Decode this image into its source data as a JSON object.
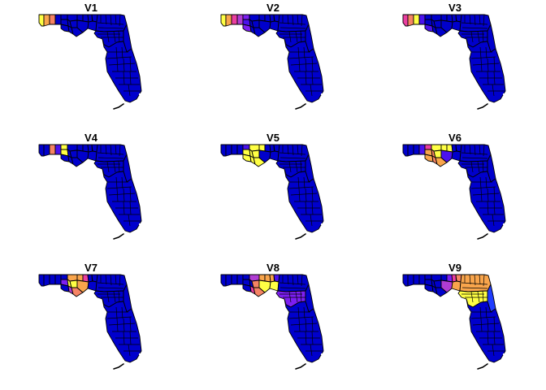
{
  "figure": {
    "panels": [
      {
        "title": "V1",
        "counties": [
          {
            "id": "escambia",
            "color": "#ffff44"
          },
          {
            "id": "santa-rosa",
            "color": "#f9a54c"
          },
          {
            "id": "okaloosa",
            "color": "#f58464"
          },
          {
            "id": "walton",
            "color": "#0000cc"
          },
          {
            "id": "holmes",
            "color": "#0000cc"
          },
          {
            "id": "washington",
            "color": "#0000cc"
          },
          {
            "id": "bay",
            "color": "#0000cc"
          },
          {
            "id": "jackson",
            "color": "#0000cc"
          },
          {
            "id": "calhoun",
            "color": "#0000cc"
          },
          {
            "id": "gulf",
            "color": "#0000cc"
          },
          {
            "id": "gadsden",
            "color": "#0000cc"
          },
          {
            "id": "liberty",
            "color": "#0000cc"
          },
          {
            "id": "franklin",
            "color": "#0000cc"
          },
          {
            "id": "leon",
            "color": "#0000cc"
          },
          {
            "id": "wakulla",
            "color": "#0000cc"
          },
          {
            "id": "jefferson",
            "color": "#0000cc"
          },
          {
            "id": "madison",
            "color": "#0000cc"
          },
          {
            "id": "taylor",
            "color": "#0000cc"
          },
          {
            "id": "nefl",
            "color": "#0000cc"
          },
          {
            "id": "central",
            "color": "#0000cc"
          },
          {
            "id": "east",
            "color": "#0000cc"
          },
          {
            "id": "south",
            "color": "#0000cc"
          }
        ]
      },
      {
        "title": "V2",
        "counties": [
          {
            "id": "escambia",
            "color": "#ffff44"
          },
          {
            "id": "santa-rosa",
            "color": "#f9a54c"
          },
          {
            "id": "okaloosa",
            "color": "#ea3fa0"
          },
          {
            "id": "walton",
            "color": "#b03cd3"
          },
          {
            "id": "holmes",
            "color": "#7d1ff2"
          },
          {
            "id": "washington",
            "color": "#4b12ee"
          },
          {
            "id": "bay",
            "color": "#7d1ff2"
          },
          {
            "id": "jackson",
            "color": "#0000cc"
          },
          {
            "id": "calhoun",
            "color": "#0000cc"
          },
          {
            "id": "gulf",
            "color": "#0000cc"
          },
          {
            "id": "gadsden",
            "color": "#0000cc"
          },
          {
            "id": "liberty",
            "color": "#0000cc"
          },
          {
            "id": "franklin",
            "color": "#0000cc"
          },
          {
            "id": "leon",
            "color": "#0000cc"
          },
          {
            "id": "wakulla",
            "color": "#0000cc"
          },
          {
            "id": "jefferson",
            "color": "#0000cc"
          },
          {
            "id": "madison",
            "color": "#0000cc"
          },
          {
            "id": "taylor",
            "color": "#0000cc"
          },
          {
            "id": "nefl",
            "color": "#0000cc"
          },
          {
            "id": "central",
            "color": "#0000cc"
          },
          {
            "id": "east",
            "color": "#0000cc"
          },
          {
            "id": "south",
            "color": "#0000cc"
          }
        ]
      },
      {
        "title": "V3",
        "counties": [
          {
            "id": "escambia",
            "color": "#ea3fa0"
          },
          {
            "id": "santa-rosa",
            "color": "#f58464"
          },
          {
            "id": "okaloosa",
            "color": "#ffff44"
          },
          {
            "id": "walton",
            "color": "#4b12ee"
          },
          {
            "id": "holmes",
            "color": "#0000cc"
          },
          {
            "id": "washington",
            "color": "#0000cc"
          },
          {
            "id": "bay",
            "color": "#4b12ee"
          },
          {
            "id": "jackson",
            "color": "#0000cc"
          },
          {
            "id": "calhoun",
            "color": "#0000cc"
          },
          {
            "id": "gulf",
            "color": "#0000cc"
          },
          {
            "id": "gadsden",
            "color": "#0000cc"
          },
          {
            "id": "liberty",
            "color": "#0000cc"
          },
          {
            "id": "franklin",
            "color": "#0000cc"
          },
          {
            "id": "leon",
            "color": "#0000cc"
          },
          {
            "id": "wakulla",
            "color": "#0000cc"
          },
          {
            "id": "jefferson",
            "color": "#0000cc"
          },
          {
            "id": "madison",
            "color": "#0000cc"
          },
          {
            "id": "taylor",
            "color": "#0000cc"
          },
          {
            "id": "nefl",
            "color": "#0000cc"
          },
          {
            "id": "central",
            "color": "#0000cc"
          },
          {
            "id": "east",
            "color": "#0000cc"
          },
          {
            "id": "south",
            "color": "#0000cc"
          }
        ]
      },
      {
        "title": "V4",
        "counties": [
          {
            "id": "escambia",
            "color": "#0000cc"
          },
          {
            "id": "santa-rosa",
            "color": "#0000cc"
          },
          {
            "id": "okaloosa",
            "color": "#f58464"
          },
          {
            "id": "walton",
            "color": "#4b12ee"
          },
          {
            "id": "holmes",
            "color": "#ffff44"
          },
          {
            "id": "washington",
            "color": "#ffff44"
          },
          {
            "id": "bay",
            "color": "#0000cc"
          },
          {
            "id": "jackson",
            "color": "#0000cc"
          },
          {
            "id": "calhoun",
            "color": "#0000cc"
          },
          {
            "id": "gulf",
            "color": "#0000cc"
          },
          {
            "id": "gadsden",
            "color": "#0000cc"
          },
          {
            "id": "liberty",
            "color": "#0000cc"
          },
          {
            "id": "franklin",
            "color": "#0000cc"
          },
          {
            "id": "leon",
            "color": "#0000cc"
          },
          {
            "id": "wakulla",
            "color": "#0000cc"
          },
          {
            "id": "jefferson",
            "color": "#0000cc"
          },
          {
            "id": "madison",
            "color": "#0000cc"
          },
          {
            "id": "taylor",
            "color": "#0000cc"
          },
          {
            "id": "nefl",
            "color": "#0000cc"
          },
          {
            "id": "central",
            "color": "#0000cc"
          },
          {
            "id": "east",
            "color": "#0000cc"
          },
          {
            "id": "south",
            "color": "#0000cc"
          }
        ]
      },
      {
        "title": "V5",
        "counties": [
          {
            "id": "escambia",
            "color": "#0000cc"
          },
          {
            "id": "santa-rosa",
            "color": "#0000cc"
          },
          {
            "id": "okaloosa",
            "color": "#0000cc"
          },
          {
            "id": "walton",
            "color": "#0000cc"
          },
          {
            "id": "holmes",
            "color": "#4b12ee"
          },
          {
            "id": "washington",
            "color": "#ffff44"
          },
          {
            "id": "bay",
            "color": "#ffff44"
          },
          {
            "id": "jackson",
            "color": "#ffff44"
          },
          {
            "id": "calhoun",
            "color": "#ffff44"
          },
          {
            "id": "gulf",
            "color": "#ffff44"
          },
          {
            "id": "gadsden",
            "color": "#ffff44"
          },
          {
            "id": "liberty",
            "color": "#ffff44"
          },
          {
            "id": "franklin",
            "color": "#ffff44"
          },
          {
            "id": "leon",
            "color": "#0000cc"
          },
          {
            "id": "wakulla",
            "color": "#0000cc"
          },
          {
            "id": "jefferson",
            "color": "#0000cc"
          },
          {
            "id": "madison",
            "color": "#0000cc"
          },
          {
            "id": "taylor",
            "color": "#0000cc"
          },
          {
            "id": "nefl",
            "color": "#0000cc"
          },
          {
            "id": "central",
            "color": "#0000cc"
          },
          {
            "id": "east",
            "color": "#0000cc"
          },
          {
            "id": "south",
            "color": "#0000cc"
          }
        ]
      },
      {
        "title": "V6",
        "counties": [
          {
            "id": "escambia",
            "color": "#0000cc"
          },
          {
            "id": "santa-rosa",
            "color": "#0000cc"
          },
          {
            "id": "okaloosa",
            "color": "#0000cc"
          },
          {
            "id": "walton",
            "color": "#4b12ee"
          },
          {
            "id": "holmes",
            "color": "#ea3fa0"
          },
          {
            "id": "washington",
            "color": "#f9a54c"
          },
          {
            "id": "bay",
            "color": "#f9a54c"
          },
          {
            "id": "jackson",
            "color": "#ffff44"
          },
          {
            "id": "calhoun",
            "color": "#f58464"
          },
          {
            "id": "gulf",
            "color": "#f58464"
          },
          {
            "id": "gadsden",
            "color": "#ffff44"
          },
          {
            "id": "liberty",
            "color": "#ffff44"
          },
          {
            "id": "franklin",
            "color": "#f9a54c"
          },
          {
            "id": "leon",
            "color": "#ffff44"
          },
          {
            "id": "wakulla",
            "color": "#4b12ee"
          },
          {
            "id": "jefferson",
            "color": "#0000cc"
          },
          {
            "id": "madison",
            "color": "#0000cc"
          },
          {
            "id": "taylor",
            "color": "#0000cc"
          },
          {
            "id": "nefl",
            "color": "#0000cc"
          },
          {
            "id": "central",
            "color": "#0000cc"
          },
          {
            "id": "east",
            "color": "#0000cc"
          },
          {
            "id": "south",
            "color": "#0000cc"
          }
        ]
      },
      {
        "title": "V7",
        "counties": [
          {
            "id": "escambia",
            "color": "#0000cc"
          },
          {
            "id": "santa-rosa",
            "color": "#0000cc"
          },
          {
            "id": "okaloosa",
            "color": "#0000cc"
          },
          {
            "id": "walton",
            "color": "#0000cc"
          },
          {
            "id": "holmes",
            "color": "#0000cc"
          },
          {
            "id": "washington",
            "color": "#7d1ff2"
          },
          {
            "id": "bay",
            "color": "#0000cc"
          },
          {
            "id": "jackson",
            "color": "#f9a54c"
          },
          {
            "id": "calhoun",
            "color": "#ffff44"
          },
          {
            "id": "gulf",
            "color": "#b03cd3"
          },
          {
            "id": "gadsden",
            "color": "#f9a54c"
          },
          {
            "id": "liberty",
            "color": "#ffff44"
          },
          {
            "id": "franklin",
            "color": "#f58464"
          },
          {
            "id": "leon",
            "color": "#ea3fa0"
          },
          {
            "id": "wakulla",
            "color": "#f9a54c"
          },
          {
            "id": "jefferson",
            "color": "#0000cc"
          },
          {
            "id": "madison",
            "color": "#0000cc"
          },
          {
            "id": "taylor",
            "color": "#0000cc"
          },
          {
            "id": "nefl",
            "color": "#0000cc"
          },
          {
            "id": "central",
            "color": "#0000cc"
          },
          {
            "id": "east",
            "color": "#0000cc"
          },
          {
            "id": "south",
            "color": "#0000cc"
          }
        ]
      },
      {
        "title": "V8",
        "counties": [
          {
            "id": "escambia",
            "color": "#0000cc"
          },
          {
            "id": "santa-rosa",
            "color": "#0000cc"
          },
          {
            "id": "okaloosa",
            "color": "#0000cc"
          },
          {
            "id": "walton",
            "color": "#0000cc"
          },
          {
            "id": "holmes",
            "color": "#0000cc"
          },
          {
            "id": "washington",
            "color": "#0000cc"
          },
          {
            "id": "bay",
            "color": "#0000cc"
          },
          {
            "id": "jackson",
            "color": "#b03cd3"
          },
          {
            "id": "calhoun",
            "color": "#0000cc"
          },
          {
            "id": "gulf",
            "color": "#ea3fa0"
          },
          {
            "id": "gadsden",
            "color": "#f9a54c"
          },
          {
            "id": "liberty",
            "color": "#f58464"
          },
          {
            "id": "franklin",
            "color": "#f58464"
          },
          {
            "id": "leon",
            "color": "#f9a54c"
          },
          {
            "id": "wakulla",
            "color": "#ffff44"
          },
          {
            "id": "jefferson",
            "color": "#f9a54c"
          },
          {
            "id": "madison",
            "color": "#4b12ee"
          },
          {
            "id": "taylor",
            "color": "#ffff44"
          },
          {
            "id": "nefl",
            "color": "#0000cc"
          },
          {
            "id": "central",
            "color": "#7d1ff2"
          },
          {
            "id": "east",
            "color": "#0000cc"
          },
          {
            "id": "south",
            "color": "#0000cc"
          }
        ]
      },
      {
        "title": "V9",
        "counties": [
          {
            "id": "escambia",
            "color": "#0000cc"
          },
          {
            "id": "santa-rosa",
            "color": "#0000cc"
          },
          {
            "id": "okaloosa",
            "color": "#0000cc"
          },
          {
            "id": "walton",
            "color": "#0000cc"
          },
          {
            "id": "holmes",
            "color": "#0000cc"
          },
          {
            "id": "washington",
            "color": "#0000cc"
          },
          {
            "id": "bay",
            "color": "#0000cc"
          },
          {
            "id": "jackson",
            "color": "#0000cc"
          },
          {
            "id": "calhoun",
            "color": "#0000cc"
          },
          {
            "id": "gulf",
            "color": "#0000cc"
          },
          {
            "id": "gadsden",
            "color": "#0000cc"
          },
          {
            "id": "liberty",
            "color": "#0000cc"
          },
          {
            "id": "franklin",
            "color": "#0000cc"
          },
          {
            "id": "leon",
            "color": "#7d1ff2"
          },
          {
            "id": "wakulla",
            "color": "#b03cd3"
          },
          {
            "id": "jefferson",
            "color": "#ea3fa0"
          },
          {
            "id": "madison",
            "color": "#f58464"
          },
          {
            "id": "taylor",
            "color": "#f9a54c"
          },
          {
            "id": "nefl",
            "color": "#f9a54c"
          },
          {
            "id": "central",
            "color": "#ffff44"
          },
          {
            "id": "east",
            "color": "#1f3cff"
          },
          {
            "id": "south",
            "color": "#0000cc"
          }
        ]
      }
    ]
  }
}
